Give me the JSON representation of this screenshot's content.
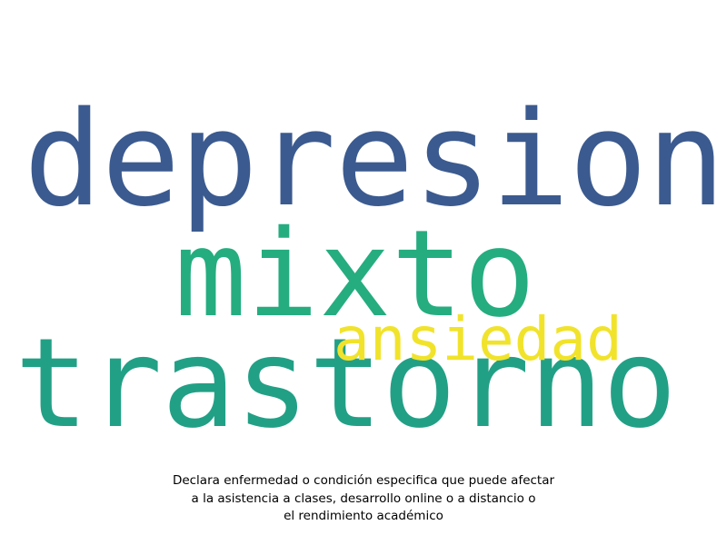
{
  "wordcloud": {
    "words": [
      {
        "text": "depresion",
        "color": "#3b5a8f"
      },
      {
        "text": "mixto",
        "color": "#25ad80"
      },
      {
        "text": "ansiedad",
        "color": "#f1e32b"
      },
      {
        "text": "trastorno",
        "color": "#22a086"
      }
    ]
  },
  "caption": {
    "lines": [
      "Declara enfermedad o condición especifica que puede afectar",
      "a la asistencia a clases, desarrollo online o a distancio o",
      "el rendimiento académico"
    ]
  }
}
